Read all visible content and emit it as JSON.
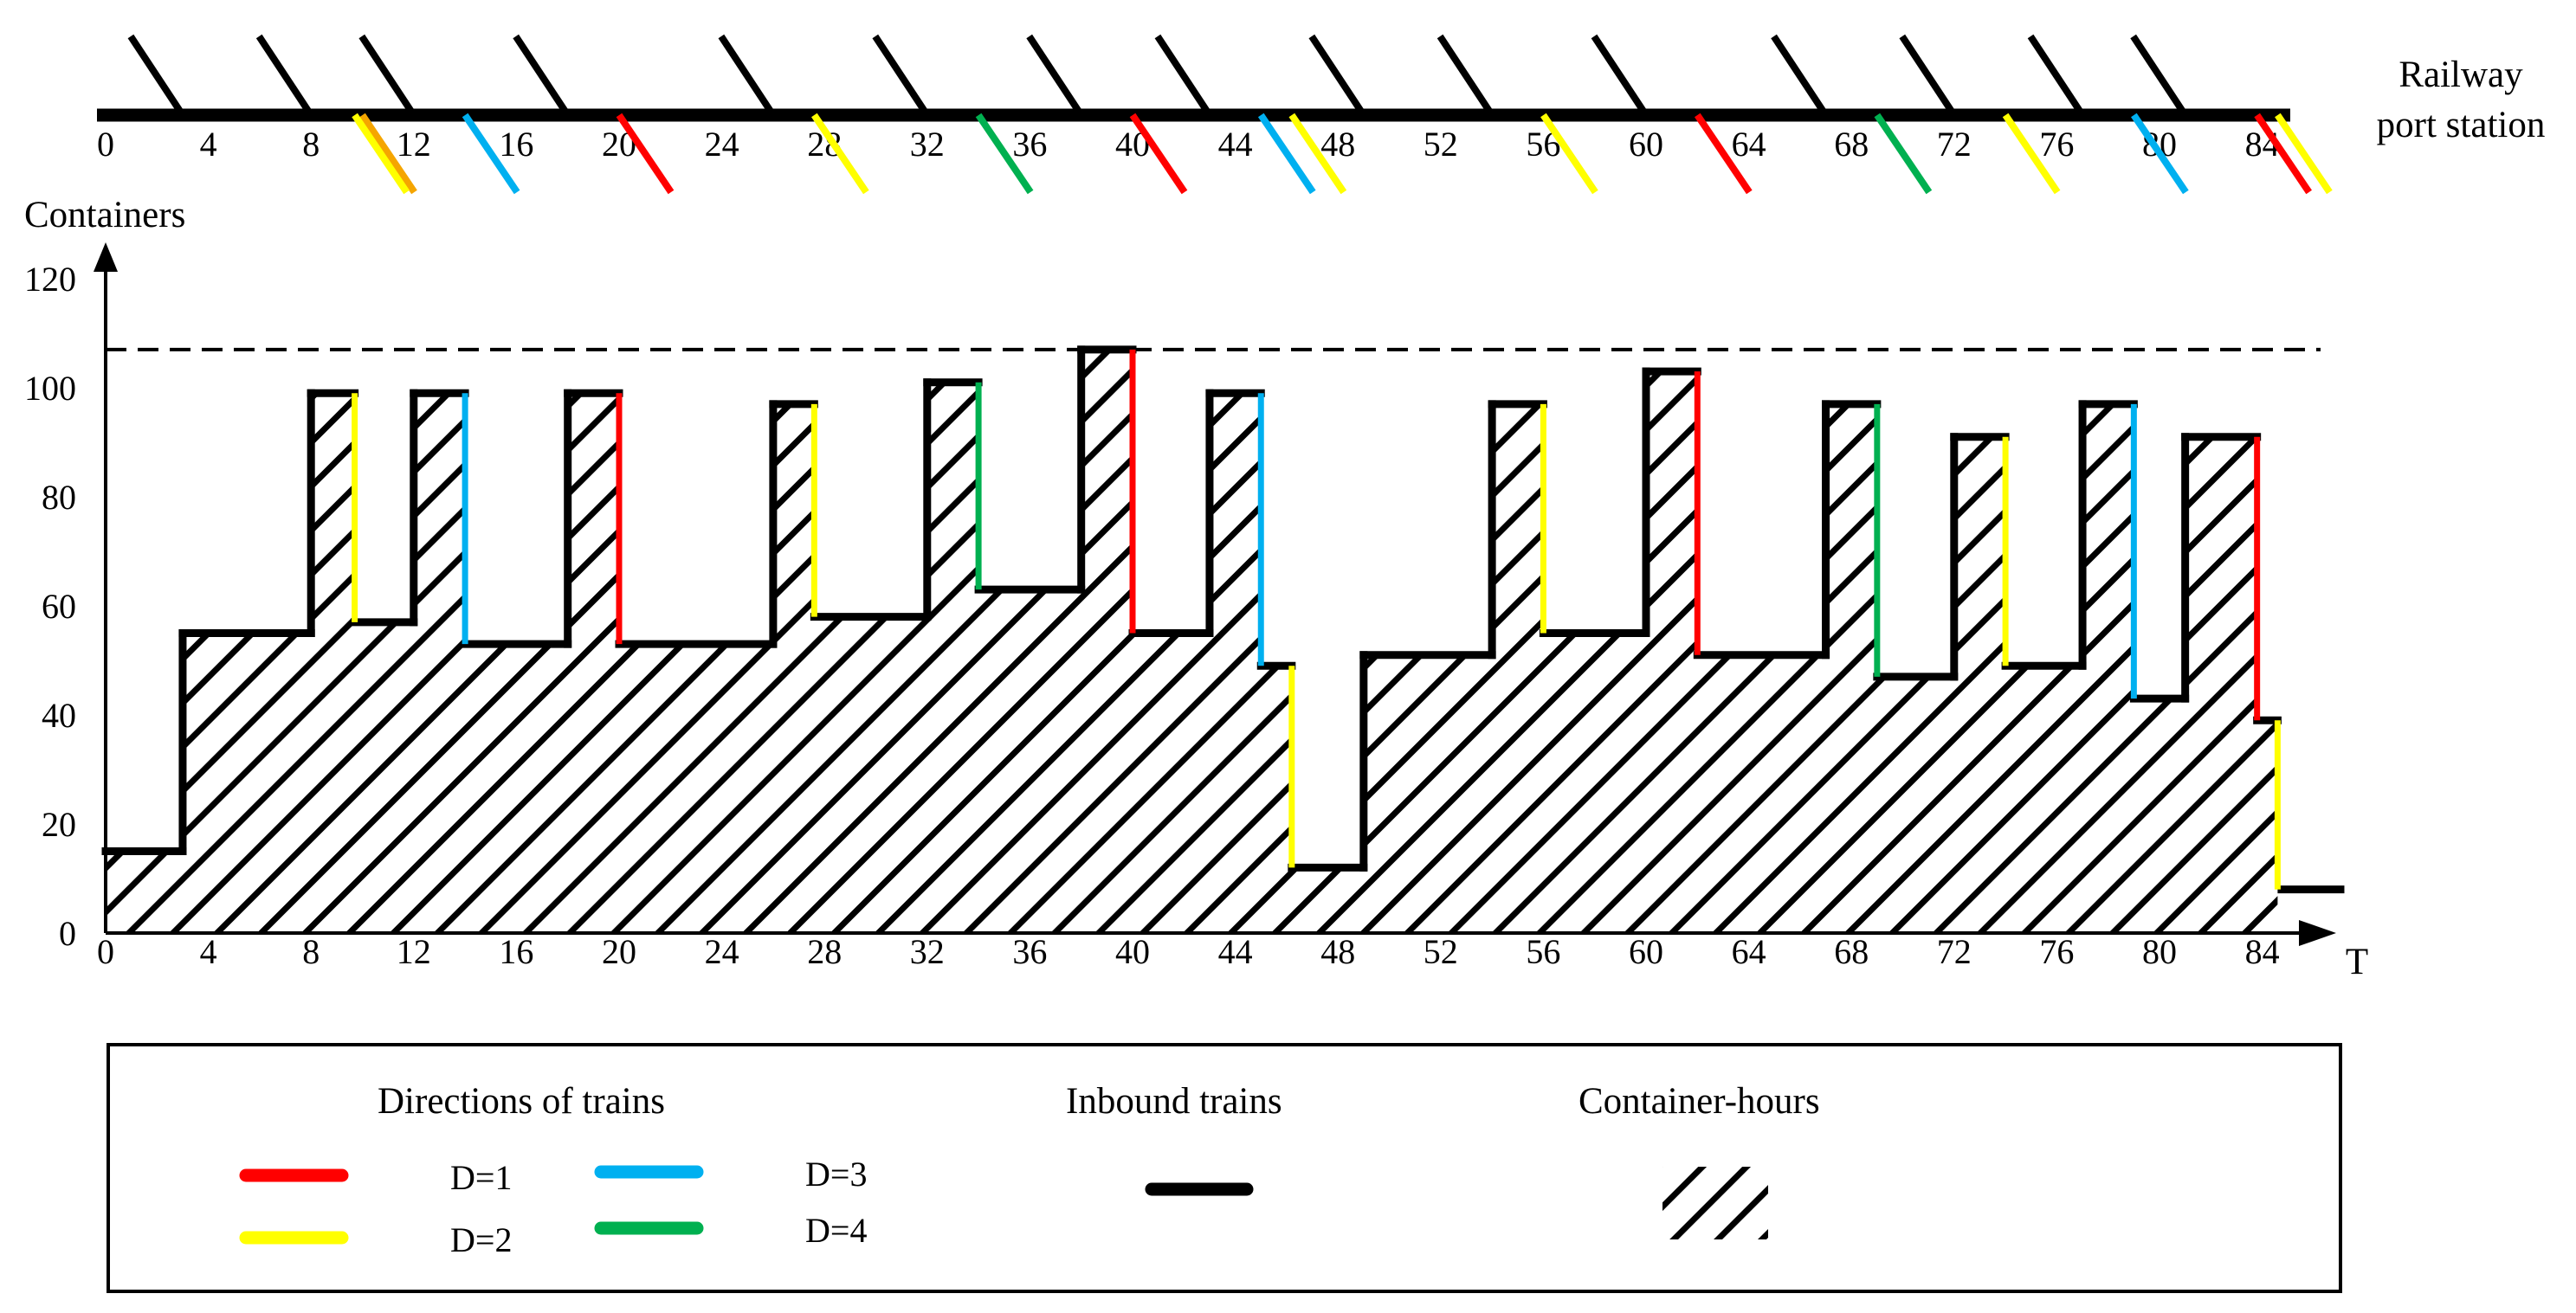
{
  "chart_data": {
    "type": "step-area",
    "station_label": [
      "Railway",
      "port station"
    ],
    "y_axis_label": "Containers",
    "x_axis_label": "T",
    "x_ticks": [
      0,
      4,
      8,
      12,
      16,
      20,
      24,
      28,
      32,
      36,
      40,
      44,
      48,
      52,
      56,
      60,
      64,
      68,
      72,
      76,
      80,
      84
    ],
    "y_ticks": [
      0,
      20,
      40,
      60,
      80,
      100,
      120
    ],
    "x_range": [
      0,
      87
    ],
    "y_range": [
      0,
      120
    ],
    "capacity_line": 107,
    "inbound_train_times": [
      3,
      8,
      12,
      18,
      26,
      32,
      38,
      43,
      49,
      54,
      60,
      67,
      72,
      77,
      81
    ],
    "outbound_trains": [
      {
        "t": 9.7,
        "d": 2,
        "from": 99,
        "to": 57
      },
      {
        "t": 14,
        "d": 3,
        "from": 99,
        "to": 53
      },
      {
        "t": 20,
        "d": 1,
        "from": 99,
        "to": 53
      },
      {
        "t": 27.6,
        "d": 2,
        "from": 97,
        "to": 58
      },
      {
        "t": 34,
        "d": 4,
        "from": 101,
        "to": 63
      },
      {
        "t": 40,
        "d": 1,
        "from": 107,
        "to": 55
      },
      {
        "t": 45,
        "d": 3,
        "from": 99,
        "to": 49
      },
      {
        "t": 46.2,
        "d": 2,
        "from": 49,
        "to": 12
      },
      {
        "t": 56,
        "d": 2,
        "from": 97,
        "to": 55
      },
      {
        "t": 62,
        "d": 1,
        "from": 103,
        "to": 51
      },
      {
        "t": 69,
        "d": 4,
        "from": 97,
        "to": 47
      },
      {
        "t": 74,
        "d": 2,
        "from": 91,
        "to": 49
      },
      {
        "t": 79,
        "d": 3,
        "from": 97,
        "to": 43
      },
      {
        "t": 83.8,
        "d": 1,
        "from": 91,
        "to": 39
      },
      {
        "t": 84.6,
        "d": 2,
        "from": 39,
        "to": 8
      }
    ],
    "extra_outbound_markers": [
      {
        "t": 10,
        "color": "#f5a500"
      }
    ],
    "container_steps": [
      [
        0,
        15
      ],
      [
        3,
        15
      ],
      [
        3,
        55
      ],
      [
        8,
        55
      ],
      [
        8,
        99
      ],
      [
        9.7,
        99
      ],
      [
        9.7,
        57
      ],
      [
        12,
        57
      ],
      [
        12,
        99
      ],
      [
        14,
        99
      ],
      [
        14,
        53
      ],
      [
        18,
        53
      ],
      [
        18,
        99
      ],
      [
        20,
        99
      ],
      [
        20,
        53
      ],
      [
        26,
        53
      ],
      [
        26,
        97
      ],
      [
        27.6,
        97
      ],
      [
        27.6,
        58
      ],
      [
        32,
        58
      ],
      [
        32,
        101
      ],
      [
        34,
        101
      ],
      [
        34,
        63
      ],
      [
        38,
        63
      ],
      [
        38,
        107
      ],
      [
        40,
        107
      ],
      [
        40,
        55
      ],
      [
        43,
        55
      ],
      [
        43,
        99
      ],
      [
        45,
        99
      ],
      [
        45,
        49
      ],
      [
        46.2,
        49
      ],
      [
        46.2,
        12
      ],
      [
        49,
        12
      ],
      [
        49,
        51
      ],
      [
        54,
        51
      ],
      [
        54,
        97
      ],
      [
        56,
        97
      ],
      [
        56,
        55
      ],
      [
        60,
        55
      ],
      [
        60,
        103
      ],
      [
        62,
        103
      ],
      [
        62,
        51
      ],
      [
        67,
        51
      ],
      [
        67,
        97
      ],
      [
        69,
        97
      ],
      [
        69,
        47
      ],
      [
        72,
        47
      ],
      [
        72,
        91
      ],
      [
        74,
        91
      ],
      [
        74,
        49
      ],
      [
        77,
        49
      ],
      [
        77,
        97
      ],
      [
        79,
        97
      ],
      [
        79,
        43
      ],
      [
        81,
        43
      ],
      [
        81,
        91
      ],
      [
        83.8,
        91
      ],
      [
        83.8,
        39
      ],
      [
        84.6,
        39
      ],
      [
        84.6,
        8
      ]
    ],
    "final_segment": {
      "from": 84.6,
      "to": 87.2,
      "value": 8
    },
    "legend": {
      "directions_title": "Directions of trains",
      "inbound_title": "Inbound trains",
      "hours_title": "Container-hours",
      "entries": [
        {
          "label": "D=1",
          "color": "#ff0000"
        },
        {
          "label": "D=2",
          "color": "#ffff00"
        },
        {
          "label": "D=3",
          "color": "#00b0f0"
        },
        {
          "label": "D=4",
          "color": "#00b050"
        }
      ]
    },
    "colors": {
      "inbound": "#000000",
      "d1": "#ff0000",
      "d2": "#ffff00",
      "d3": "#00b0f0",
      "d4": "#00b050",
      "orange": "#f5a500"
    }
  }
}
